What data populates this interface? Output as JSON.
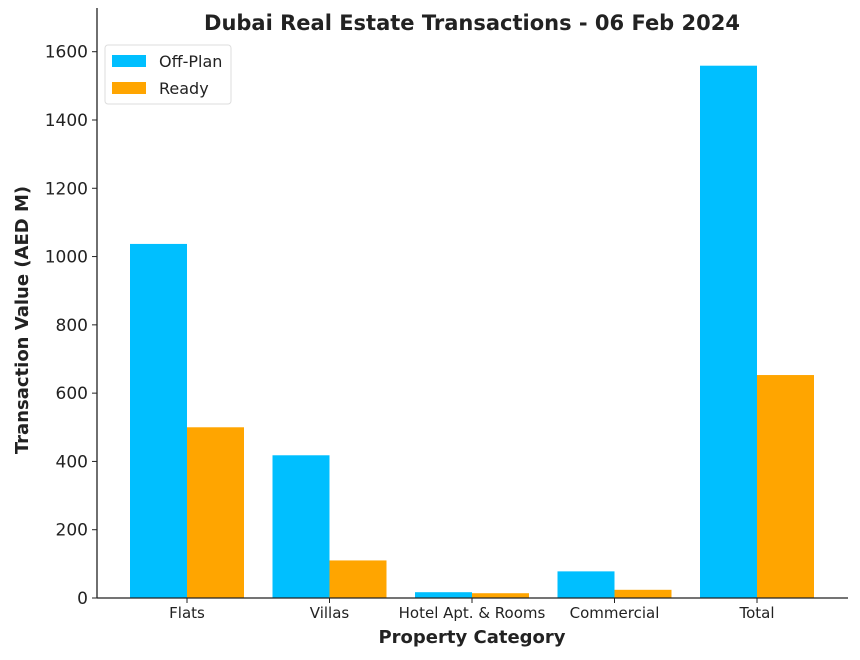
{
  "chart_data": {
    "type": "bar",
    "title": "Dubai Real Estate Transactions - 06 Feb 2024",
    "xlabel": "Property Category",
    "ylabel": "Transaction Value (AED M)",
    "categories": [
      "Flats",
      "Villas",
      "Hotel Apt. & Rooms",
      "Commercial",
      "Total"
    ],
    "series": [
      {
        "name": "Off-Plan",
        "color": "#00BFFF",
        "values": [
          1037,
          418,
          17,
          78,
          1559
        ]
      },
      {
        "name": "Ready",
        "color": "#FFA500",
        "values": [
          500,
          110,
          14,
          24,
          653
        ]
      }
    ],
    "ylim": [
      0,
      1620
    ],
    "yticks": [
      0,
      200,
      400,
      600,
      800,
      1000,
      1200,
      1400,
      1600
    ],
    "grid": false,
    "legend_position": "top-left"
  }
}
